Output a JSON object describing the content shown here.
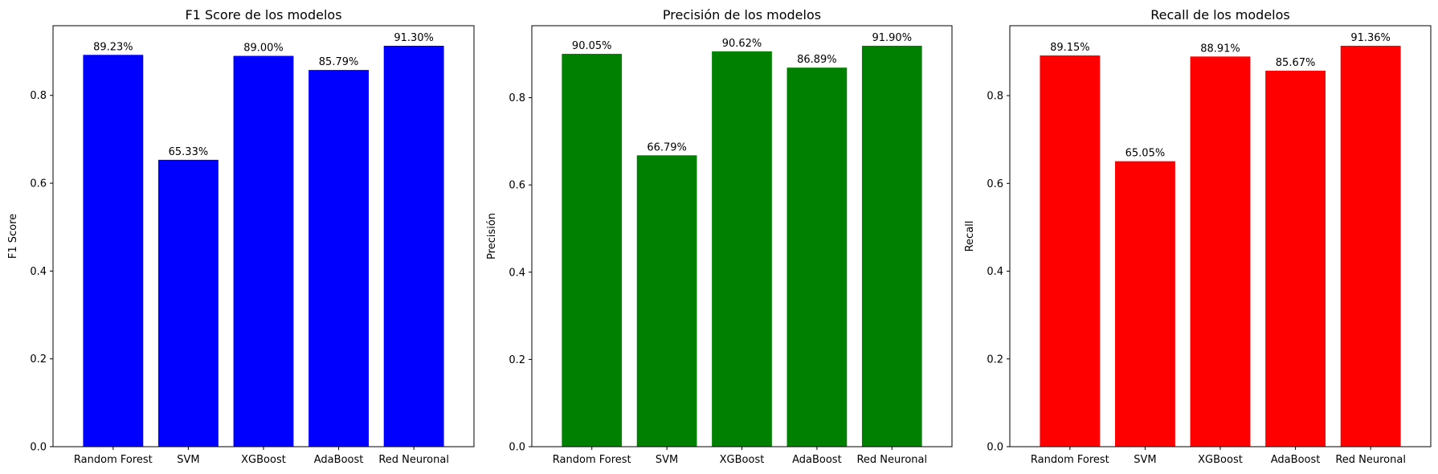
{
  "chart_data": [
    {
      "type": "bar",
      "title": "F1 Score de los modelos",
      "xlabel": "",
      "ylabel": "F1 Score",
      "categories": [
        "Random Forest",
        "SVM",
        "XGBoost",
        "AdaBoost",
        "Red Neuronal"
      ],
      "values": [
        0.8923,
        0.6533,
        0.89,
        0.8579,
        0.913
      ],
      "value_labels": [
        "89.23%",
        "65.33%",
        "89.00%",
        "85.79%",
        "91.30%"
      ],
      "yticks": [
        "0.0",
        "0.2",
        "0.4",
        "0.6",
        "0.8"
      ],
      "ylim": [
        0,
        0.9587
      ],
      "color": "#0000ff",
      "grid": false,
      "legend": "none"
    },
    {
      "type": "bar",
      "title": "Precisión de los modelos",
      "xlabel": "",
      "ylabel": "Precisión",
      "categories": [
        "Random Forest",
        "SVM",
        "XGBoost",
        "AdaBoost",
        "Red Neuronal"
      ],
      "values": [
        0.9005,
        0.6679,
        0.9062,
        0.8689,
        0.919
      ],
      "value_labels": [
        "90.05%",
        "66.79%",
        "90.62%",
        "86.89%",
        "91.90%"
      ],
      "yticks": [
        "0.0",
        "0.2",
        "0.4",
        "0.6",
        "0.8"
      ],
      "ylim": [
        0,
        0.965
      ],
      "color": "#008000",
      "grid": false,
      "legend": "none"
    },
    {
      "type": "bar",
      "title": "Recall de los modelos",
      "xlabel": "",
      "ylabel": "Recall",
      "categories": [
        "Random Forest",
        "SVM",
        "XGBoost",
        "AdaBoost",
        "Red Neuronal"
      ],
      "values": [
        0.8915,
        0.6505,
        0.8891,
        0.8567,
        0.9136
      ],
      "value_labels": [
        "89.15%",
        "65.05%",
        "88.91%",
        "85.67%",
        "91.36%"
      ],
      "yticks": [
        "0.0",
        "0.2",
        "0.4",
        "0.6",
        "0.8"
      ],
      "ylim": [
        0,
        0.9593
      ],
      "color": "#ff0000",
      "grid": false,
      "legend": "none"
    }
  ]
}
